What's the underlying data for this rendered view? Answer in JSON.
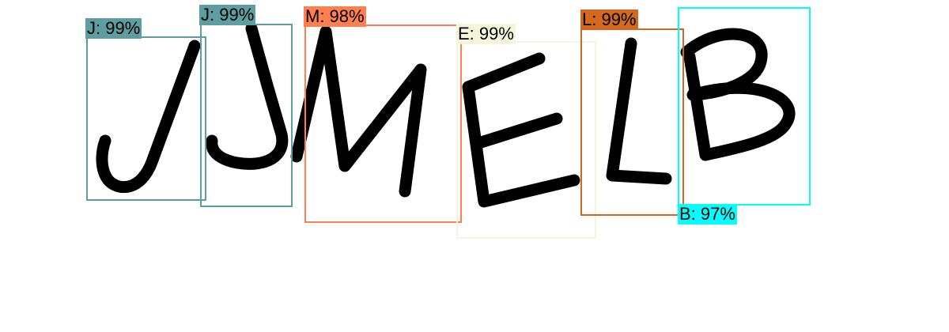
{
  "detections": [
    {
      "character": "J",
      "label": "J: 99%",
      "confidence": 0.99,
      "color": "#5f9ea0"
    },
    {
      "character": "J",
      "label": "J: 99%",
      "confidence": 0.99,
      "color": "#5f9ea0"
    },
    {
      "character": "M",
      "label": "M: 98%",
      "confidence": 0.98,
      "color": "#ff7f50"
    },
    {
      "character": "E",
      "label": "E: 99%",
      "confidence": 0.99,
      "color": "#f5f5dc"
    },
    {
      "character": "L",
      "label": "L: 99%",
      "confidence": 0.99,
      "color": "#d2691e"
    },
    {
      "character": "B",
      "label": "B: 97%",
      "confidence": 0.97,
      "color": "#00ffff"
    }
  ]
}
